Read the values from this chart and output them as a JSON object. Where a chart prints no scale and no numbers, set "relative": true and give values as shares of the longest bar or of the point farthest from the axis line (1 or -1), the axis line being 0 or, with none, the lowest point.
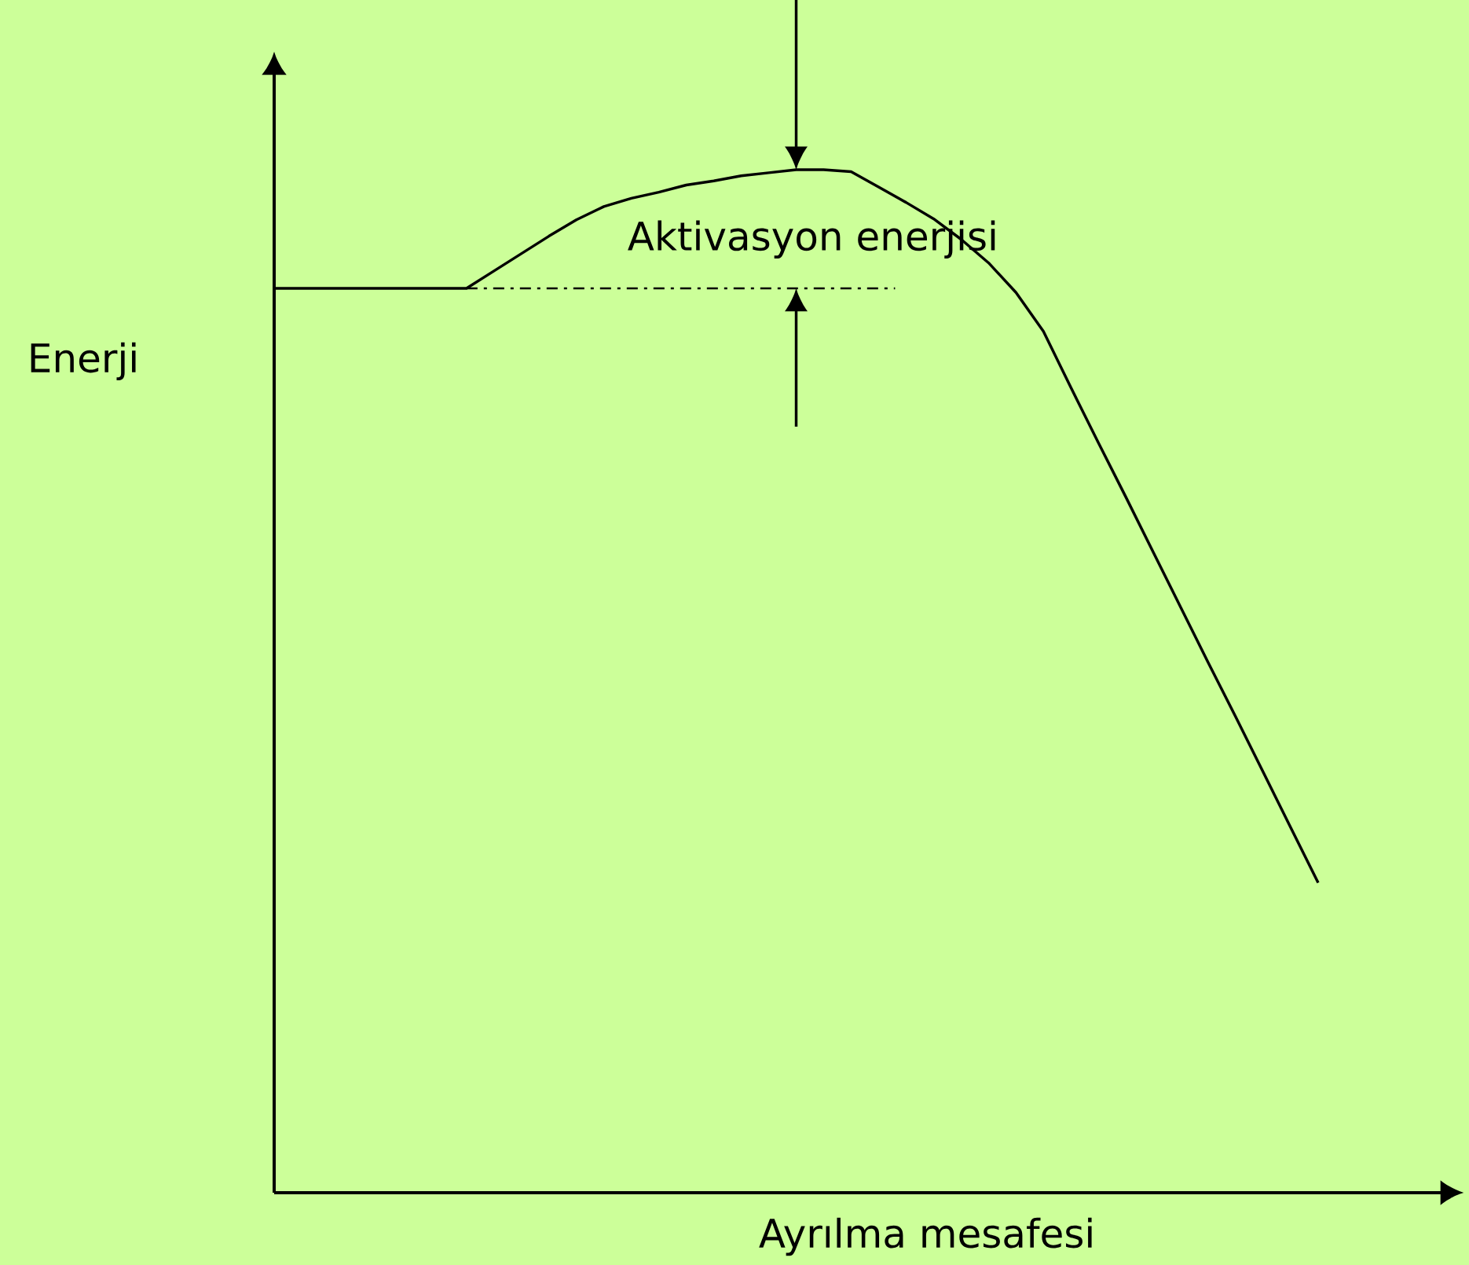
{
  "chart_data": {
    "type": "line",
    "relative": true,
    "xlabel": "Ayrılma mesafesi",
    "ylabel": "Enerji",
    "annotations": [
      "Aktivasyon enerjisi"
    ],
    "categories": [
      null,
      null,
      null,
      null,
      null,
      null,
      null,
      null,
      null,
      null,
      null,
      null,
      null,
      null,
      null,
      null,
      null,
      null,
      null,
      null,
      null,
      null,
      null,
      null,
      null,
      null,
      null,
      null,
      null,
      null,
      null,
      null,
      null,
      null,
      null,
      null,
      null,
      null,
      null
    ],
    "series": [
      {
        "color": "#000000",
        "values": [
          0.884,
          0.884,
          0.884,
          0.884,
          0.884,
          0.884,
          0.884,
          0.884,
          0.901,
          0.918,
          0.935,
          0.951,
          0.964,
          0.972,
          0.978,
          0.985,
          0.989,
          0.994,
          0.997,
          1,
          1,
          0.998,
          0.983,
          0.968,
          0.952,
          0.932,
          0.909,
          0.88,
          0.842,
          0.787,
          0.733,
          0.68,
          0.626,
          0.572,
          0.518,
          0.465,
          0.411,
          0.357,
          0.303
        ]
      }
    ],
    "ref_lines": [
      {
        "axis": "y",
        "value": 0.884,
        "line_style": "dashdot",
        "color": "#000000"
      }
    ]
  }
}
